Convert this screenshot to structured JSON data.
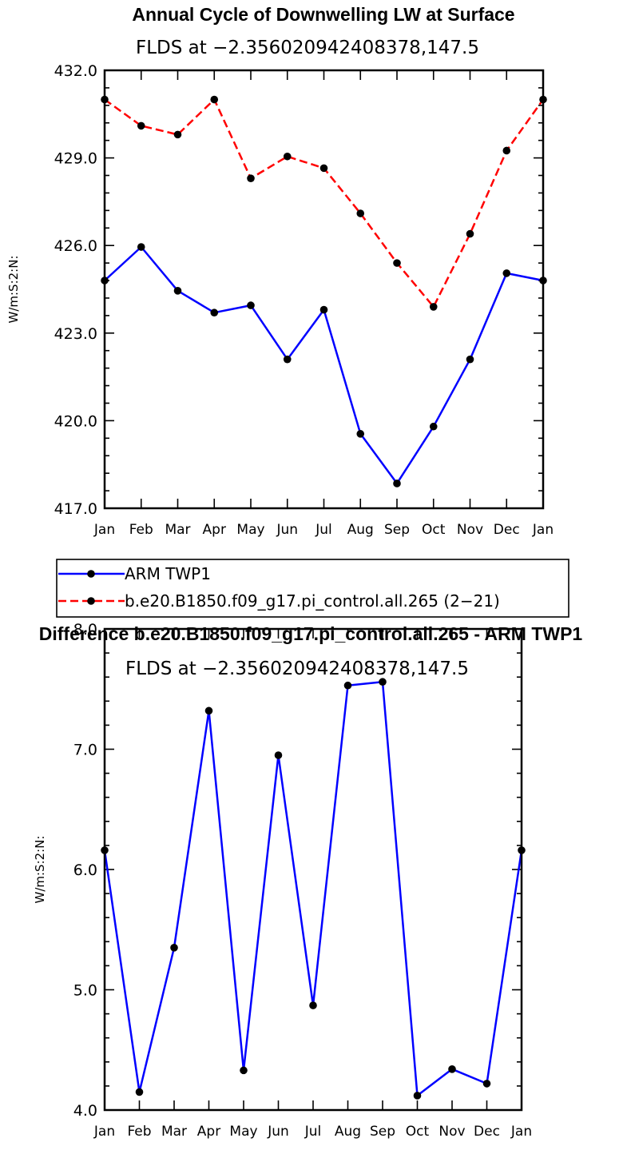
{
  "chart_data": [
    {
      "type": "line",
      "title": "Annual Cycle of Downwelling LW at Surface",
      "subtitle": "FLDS at −2.356020942408378,147.5",
      "ylabel": "W/m:S:2:N:",
      "categories": [
        "Jan",
        "Feb",
        "Mar",
        "Apr",
        "May",
        "Jun",
        "Jul",
        "Aug",
        "Sep",
        "Oct",
        "Nov",
        "Dec",
        "Jan"
      ],
      "ylim": [
        417.0,
        432.0
      ],
      "yticks": [
        417.0,
        420.0,
        423.0,
        426.0,
        429.0,
        432.0
      ],
      "ytick_labels": [
        "417.0",
        "420.0",
        "423.0",
        "426.0",
        "429.0",
        "432.0"
      ],
      "series": [
        {
          "name": "ARM TWP1",
          "color": "#0000ff",
          "dashed": false,
          "values": [
            424.8,
            425.95,
            424.45,
            423.7,
            423.95,
            422.1,
            423.8,
            419.55,
            417.85,
            419.8,
            422.1,
            425.05,
            424.8
          ]
        },
        {
          "name": "b.e20.B1850.f09_g17.pi_control.all.265 (2−21)",
          "color": "#ff0000",
          "dashed": true,
          "values": [
            431.0,
            430.1,
            429.8,
            431.0,
            428.3,
            429.05,
            428.65,
            427.1,
            425.4,
            423.9,
            426.4,
            429.25,
            431.0
          ]
        }
      ],
      "legend_position": "below"
    },
    {
      "type": "line",
      "title": "Difference b.e20.B1850.f09_g17.pi_control.all.265 - ARM TWP1",
      "subtitle": "FLDS at −2.356020942408378,147.5",
      "ylabel": "W/m:S:2:N:",
      "categories": [
        "Jan",
        "Feb",
        "Mar",
        "Apr",
        "May",
        "Jun",
        "Jul",
        "Aug",
        "Sep",
        "Oct",
        "Nov",
        "Dec",
        "Jan"
      ],
      "ylim": [
        4.0,
        8.0
      ],
      "yticks": [
        4.0,
        5.0,
        6.0,
        7.0,
        8.0
      ],
      "ytick_labels": [
        "4.0",
        "5.0",
        "6.0",
        "7.0",
        "8.0"
      ],
      "series": [
        {
          "name": "Difference",
          "color": "#0000ff",
          "dashed": false,
          "values": [
            6.16,
            4.15,
            5.35,
            7.32,
            4.33,
            6.95,
            4.87,
            7.53,
            7.56,
            4.12,
            4.34,
            4.22,
            6.16
          ]
        }
      ]
    }
  ]
}
